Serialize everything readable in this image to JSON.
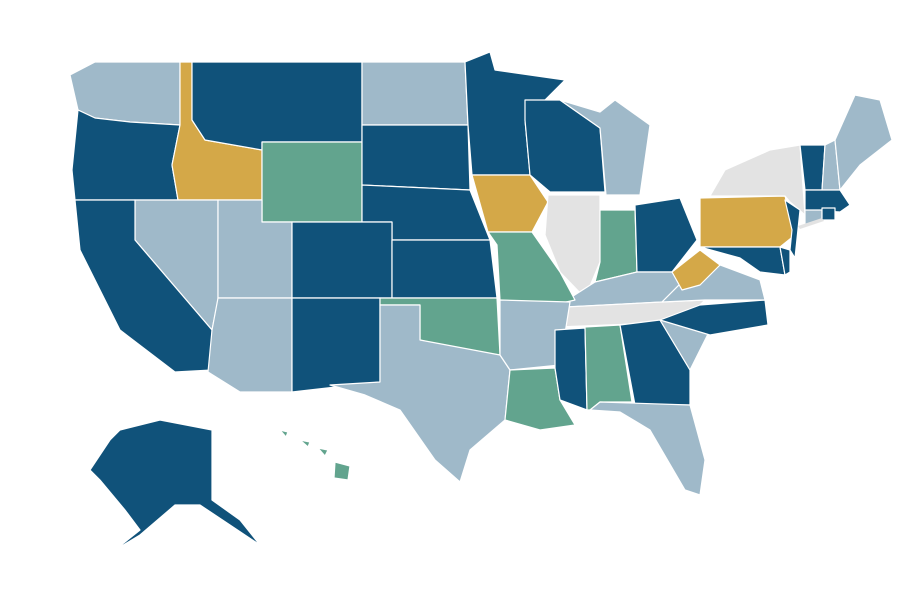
{
  "map": {
    "type": "choropleth",
    "region": "United States",
    "colors": {
      "dark_blue": "#10527a",
      "light_blue": "#9fb9c9",
      "gold": "#d4a848",
      "green": "#62a48e",
      "gray": "#e3e3e3"
    },
    "states": {
      "WA": "light_blue",
      "OR": "dark_blue",
      "CA": "dark_blue",
      "ID": "gold",
      "NV": "light_blue",
      "MT": "dark_blue",
      "WY": "green",
      "UT": "light_blue",
      "AZ": "light_blue",
      "CO": "dark_blue",
      "NM": "dark_blue",
      "ND": "light_blue",
      "SD": "dark_blue",
      "NE": "dark_blue",
      "KS": "dark_blue",
      "OK": "green",
      "TX": "light_blue",
      "MN": "dark_blue",
      "IA": "gold",
      "MO": "green",
      "AR": "light_blue",
      "LA": "green",
      "WI": "dark_blue",
      "IL": "gray",
      "MS": "dark_blue",
      "MI": "light_blue",
      "IN": "green",
      "KY": "light_blue",
      "TN": "gray",
      "AL": "green",
      "OH": "dark_blue",
      "GA": "dark_blue",
      "FL": "light_blue",
      "SC": "light_blue",
      "NC": "dark_blue",
      "VA": "light_blue",
      "WV": "gold",
      "PA": "gold",
      "NY": "gray",
      "MD": "dark_blue",
      "DE": "dark_blue",
      "NJ": "dark_blue",
      "CT": "light_blue",
      "RI": "dark_blue",
      "MA": "dark_blue",
      "VT": "dark_blue",
      "NH": "light_blue",
      "ME": "light_blue",
      "AK": "dark_blue",
      "HI": "green"
    }
  }
}
